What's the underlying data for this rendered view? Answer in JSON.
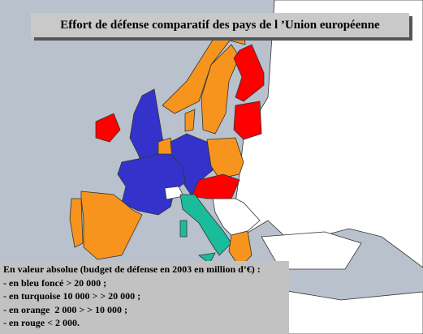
{
  "title": "Effort de défense comparatif des pays de l ’Union européenne",
  "legend": {
    "heading": "En valeur absolue (budget de défense en 2003 en million d’€) :",
    "items": [
      "- en bleu foncé > 20 000 ;",
      "- en turquoise 10 000 > > 20 000 ;",
      "- en orange  2 000 > > 10 000 ;",
      "- en rouge < 2 000."
    ]
  }
}
